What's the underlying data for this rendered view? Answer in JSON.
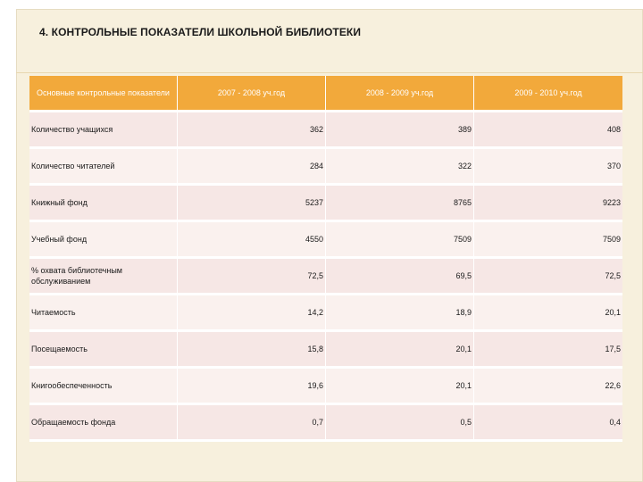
{
  "title": "4. КОНТРОЛЬНЫЕ ПОКАЗАТЕЛИ ШКОЛЬНОЙ БИБЛИОТЕКИ",
  "table": {
    "headers": [
      "Основные контрольные показатели",
      "2007 - 2008 уч.год",
      "2008 - 2009 уч.год",
      "2009 - 2010 уч.год"
    ],
    "rows": [
      {
        "label": "Количество учащихся",
        "values": [
          "362",
          "389",
          "408"
        ]
      },
      {
        "label": "Количество читателей",
        "values": [
          "284",
          "322",
          "370"
        ]
      },
      {
        "label": "Книжный фонд",
        "values": [
          "5237",
          "8765",
          "9223"
        ]
      },
      {
        "label": "Учебный фонд",
        "values": [
          "4550",
          "7509",
          "7509"
        ]
      },
      {
        "label": "% охвата библиотечным обслуживанием",
        "values": [
          "72,5",
          "69,5",
          "72,5"
        ]
      },
      {
        "label": "Читаемость",
        "values": [
          "14,2",
          "18,9",
          "20,1"
        ]
      },
      {
        "label": "Посещаемость",
        "values": [
          "15,8",
          "20,1",
          "17,5"
        ]
      },
      {
        "label": "Книгообеспеченность",
        "values": [
          "19,6",
          "20,1",
          "22,6"
        ]
      },
      {
        "label": "Обращаемость фонда",
        "values": [
          "0,7",
          "0,5",
          "0,4"
        ]
      }
    ]
  },
  "colors": {
    "header_bg": "#f2a93b",
    "header_text": "#ffffff",
    "row_odd": "#f6e7e5",
    "row_even": "#faf1ee",
    "slide_bg": "#f7f0dd"
  }
}
